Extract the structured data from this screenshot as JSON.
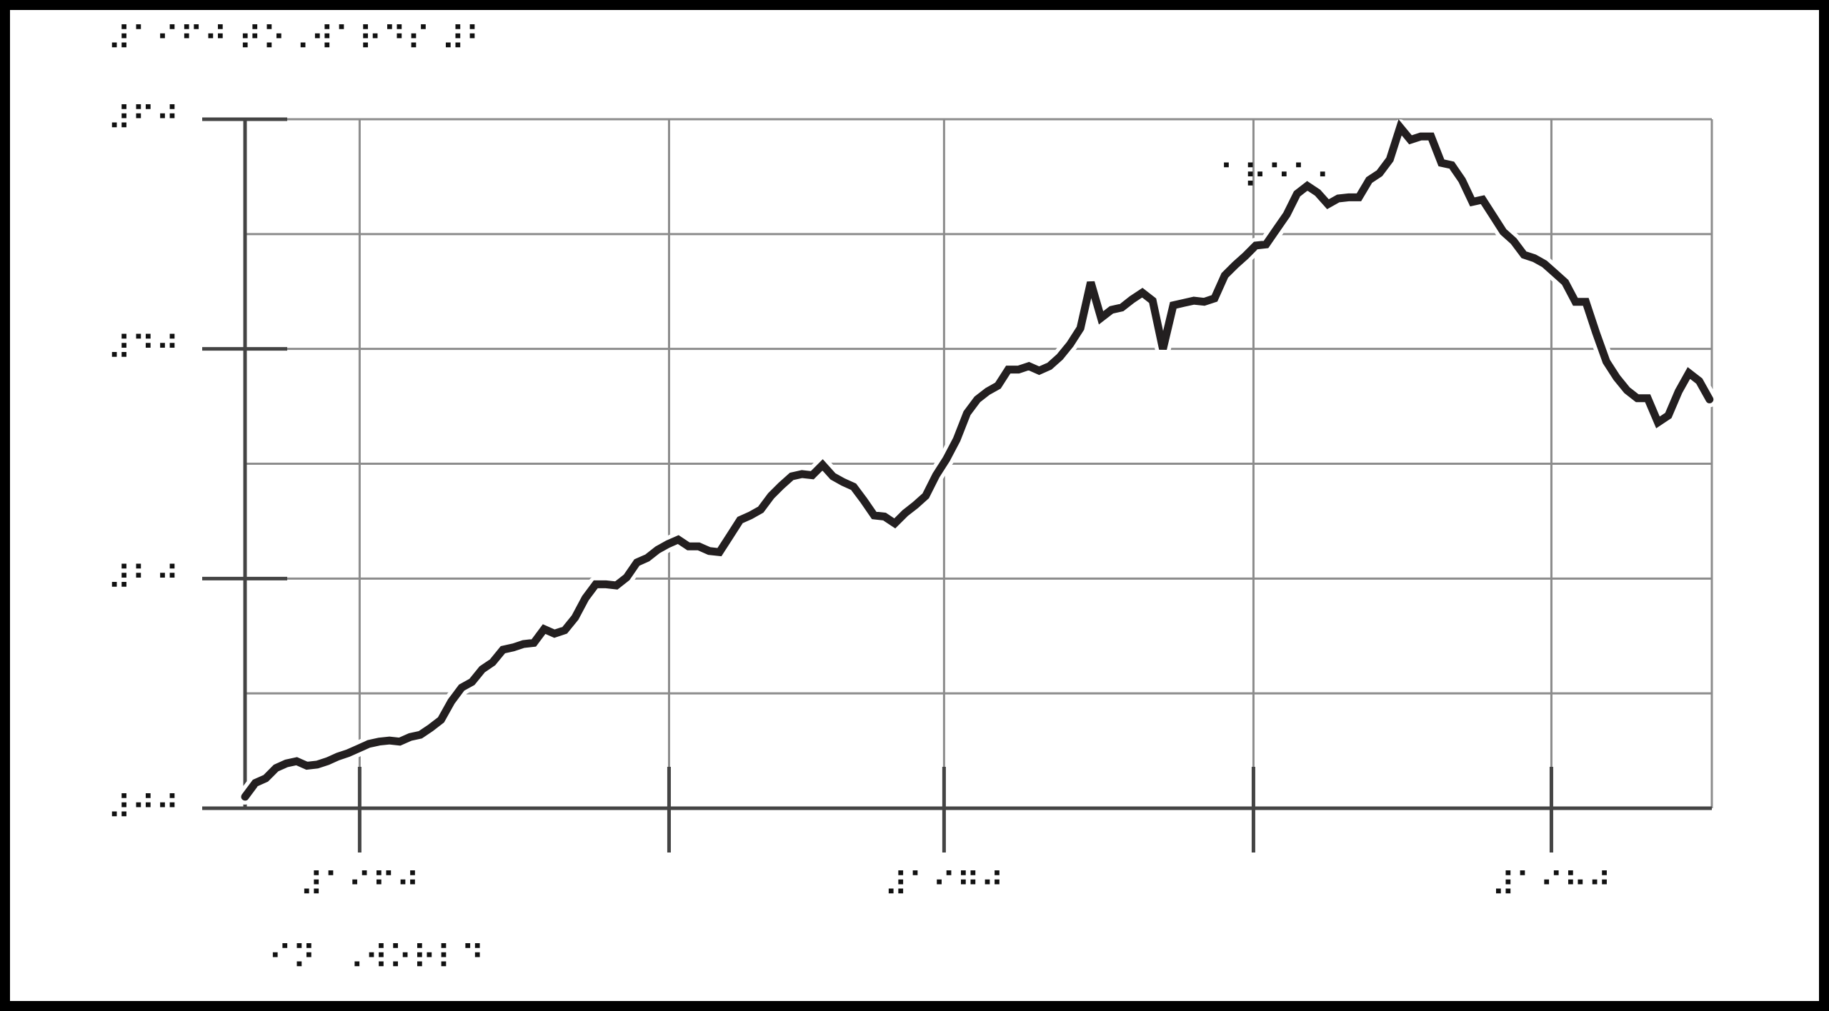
{
  "colors": {
    "frame": "#000000",
    "background": "#ffffff",
    "grid": "#8c8c8c",
    "axis": "#444444",
    "line": "#231f20",
    "text": "#111111"
  },
  "title": "⠼⠁⠊⠋⠚ ⠞⠕⠠⠺⠁⠗⠙⠎ ⠼⠃",
  "chart_data": {
    "type": "line",
    "title": "⠼⠁⠊⠋⠚ ⠞⠕⠠⠺⠁⠗⠙⠎ ⠼⠃",
    "xlabel": "",
    "ylabel": "",
    "xlim": [
      0,
      128
    ],
    "ylim": [
      0,
      6
    ],
    "grid": true,
    "y_ticks": [
      {
        "value": 0,
        "label": "⠼⠚⠚"
      },
      {
        "value": 2,
        "label": "⠼⠃⠚"
      },
      {
        "value": 4,
        "label": "⠼⠙⠚"
      },
      {
        "value": 6,
        "label": "⠼⠋⠚"
      }
    ],
    "y_minor_grid": [
      1,
      3,
      5
    ],
    "x_ticks": [
      {
        "value": 10,
        "label": "⠼⠁⠊⠋⠚"
      },
      {
        "value": 37,
        "label": ""
      },
      {
        "value": 61,
        "label": "⠼⠁⠊⠛⠚"
      },
      {
        "value": 88,
        "label": ""
      },
      {
        "value": 114,
        "label": "⠼⠁⠊⠓⠚"
      }
    ],
    "x_grid": [
      10,
      37,
      61,
      88,
      114,
      128
    ],
    "annotations": [
      {
        "text": "⠁⠗⠑⠁⠂",
        "x": 85,
        "y": 5.4
      },
      {
        "text": "⠊⠝⠀⠠⠺⠕⠗⠇⠙⠀⠀⠀⠀",
        "x": 2,
        "y": -1.4
      }
    ],
    "series": [
      {
        "values": [
          [
            0.0,
            0.1
          ],
          [
            0.9,
            0.22
          ],
          [
            1.8,
            0.26
          ],
          [
            2.7,
            0.35
          ],
          [
            3.6,
            0.39
          ],
          [
            4.5,
            0.41
          ],
          [
            5.4,
            0.37
          ],
          [
            6.3,
            0.38
          ],
          [
            7.2,
            0.41
          ],
          [
            8.1,
            0.45
          ],
          [
            9.0,
            0.48
          ],
          [
            9.9,
            0.52
          ],
          [
            10.8,
            0.56
          ],
          [
            11.7,
            0.58
          ],
          [
            12.6,
            0.59
          ],
          [
            13.5,
            0.58
          ],
          [
            14.4,
            0.62
          ],
          [
            15.3,
            0.64
          ],
          [
            16.2,
            0.7
          ],
          [
            17.1,
            0.77
          ],
          [
            18.0,
            0.93
          ],
          [
            18.9,
            1.05
          ],
          [
            19.8,
            1.1
          ],
          [
            20.7,
            1.21
          ],
          [
            21.6,
            1.27
          ],
          [
            22.5,
            1.38
          ],
          [
            23.4,
            1.4
          ],
          [
            24.3,
            1.43
          ],
          [
            25.2,
            1.44
          ],
          [
            26.1,
            1.56
          ],
          [
            27.0,
            1.52
          ],
          [
            27.9,
            1.55
          ],
          [
            28.8,
            1.66
          ],
          [
            29.7,
            1.83
          ],
          [
            30.6,
            1.95
          ],
          [
            31.5,
            1.95
          ],
          [
            32.4,
            1.94
          ],
          [
            33.3,
            2.01
          ],
          [
            34.2,
            2.14
          ],
          [
            35.1,
            2.18
          ],
          [
            36.0,
            2.25
          ],
          [
            36.9,
            2.3
          ],
          [
            37.8,
            2.34
          ],
          [
            38.7,
            2.28
          ],
          [
            39.6,
            2.28
          ],
          [
            40.5,
            2.24
          ],
          [
            41.4,
            2.23
          ],
          [
            42.3,
            2.37
          ],
          [
            43.2,
            2.51
          ],
          [
            44.1,
            2.55
          ],
          [
            45.0,
            2.6
          ],
          [
            45.9,
            2.72
          ],
          [
            46.8,
            2.81
          ],
          [
            47.7,
            2.89
          ],
          [
            48.6,
            2.91
          ],
          [
            49.5,
            2.9
          ],
          [
            50.4,
            2.99
          ],
          [
            51.3,
            2.89
          ],
          [
            52.2,
            2.84
          ],
          [
            53.1,
            2.8
          ],
          [
            54.0,
            2.68
          ],
          [
            54.9,
            2.55
          ],
          [
            55.8,
            2.54
          ],
          [
            56.7,
            2.48
          ],
          [
            57.6,
            2.57
          ],
          [
            58.5,
            2.64
          ],
          [
            59.4,
            2.72
          ],
          [
            60.3,
            2.9
          ],
          [
            61.2,
            3.04
          ],
          [
            62.1,
            3.21
          ],
          [
            63.0,
            3.44
          ],
          [
            63.9,
            3.56
          ],
          [
            64.8,
            3.63
          ],
          [
            65.7,
            3.68
          ],
          [
            66.6,
            3.82
          ],
          [
            67.5,
            3.82
          ],
          [
            68.4,
            3.85
          ],
          [
            69.3,
            3.81
          ],
          [
            70.2,
            3.85
          ],
          [
            71.1,
            3.93
          ],
          [
            72.0,
            4.04
          ],
          [
            72.9,
            4.18
          ],
          [
            73.8,
            4.58
          ],
          [
            74.7,
            4.27
          ],
          [
            75.6,
            4.34
          ],
          [
            76.5,
            4.36
          ],
          [
            77.4,
            4.43
          ],
          [
            78.3,
            4.49
          ],
          [
            79.2,
            4.42
          ],
          [
            80.1,
            4.0
          ],
          [
            81.0,
            4.38
          ],
          [
            81.9,
            4.4
          ],
          [
            82.8,
            4.42
          ],
          [
            83.7,
            4.41
          ],
          [
            84.6,
            4.44
          ],
          [
            85.5,
            4.64
          ],
          [
            86.4,
            4.73
          ],
          [
            87.3,
            4.81
          ],
          [
            88.2,
            4.9
          ],
          [
            89.1,
            4.91
          ],
          [
            90.0,
            5.04
          ],
          [
            90.9,
            5.17
          ],
          [
            91.8,
            5.35
          ],
          [
            92.7,
            5.42
          ],
          [
            93.6,
            5.36
          ],
          [
            94.5,
            5.26
          ],
          [
            95.4,
            5.31
          ],
          [
            96.3,
            5.32
          ],
          [
            97.2,
            5.32
          ],
          [
            98.1,
            5.47
          ],
          [
            99.0,
            5.53
          ],
          [
            99.9,
            5.65
          ],
          [
            100.8,
            5.93
          ],
          [
            101.7,
            5.82
          ],
          [
            102.6,
            5.85
          ],
          [
            103.5,
            5.85
          ],
          [
            104.4,
            5.62
          ],
          [
            105.3,
            5.6
          ],
          [
            106.2,
            5.47
          ],
          [
            107.1,
            5.28
          ],
          [
            108.0,
            5.3
          ],
          [
            108.9,
            5.16
          ],
          [
            109.8,
            5.02
          ],
          [
            110.7,
            4.94
          ],
          [
            111.6,
            4.82
          ],
          [
            112.5,
            4.79
          ],
          [
            113.4,
            4.74
          ],
          [
            114.3,
            4.66
          ],
          [
            115.2,
            4.58
          ],
          [
            116.1,
            4.41
          ],
          [
            117.0,
            4.41
          ],
          [
            117.9,
            4.14
          ],
          [
            118.8,
            3.89
          ],
          [
            119.7,
            3.75
          ],
          [
            120.6,
            3.64
          ],
          [
            121.5,
            3.57
          ],
          [
            122.4,
            3.57
          ],
          [
            123.3,
            3.36
          ],
          [
            124.2,
            3.42
          ],
          [
            125.1,
            3.63
          ],
          [
            126.0,
            3.79
          ],
          [
            126.9,
            3.72
          ],
          [
            127.8,
            3.56
          ]
        ]
      }
    ]
  }
}
